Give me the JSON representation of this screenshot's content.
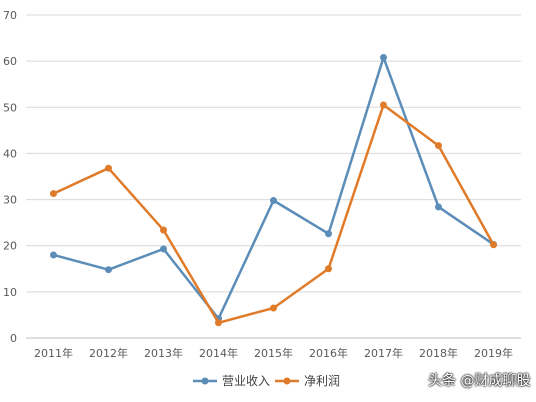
{
  "chart_data": {
    "type": "line",
    "categories": [
      "2011年",
      "2012年",
      "2013年",
      "2014年",
      "2015年",
      "2016年",
      "2017年",
      "2018年",
      "2019年"
    ],
    "series": [
      {
        "name": "营业收入",
        "color": "#5B8DB8",
        "values": [
          18,
          14.8,
          19.3,
          4.2,
          29.8,
          22.6,
          60.8,
          28.4,
          20.3
        ]
      },
      {
        "name": "净利润",
        "color": "#E07B2A",
        "values": [
          31.3,
          36.8,
          23.4,
          3.3,
          6.5,
          15,
          50.5,
          41.7,
          20.2
        ]
      }
    ],
    "ylim": [
      0,
      70
    ],
    "yticks": [
      "0",
      "10",
      "20",
      "30",
      "40",
      "50",
      "60",
      "70"
    ],
    "grid": true,
    "legend": "bottom"
  },
  "watermark": "头条 @财成聊股"
}
